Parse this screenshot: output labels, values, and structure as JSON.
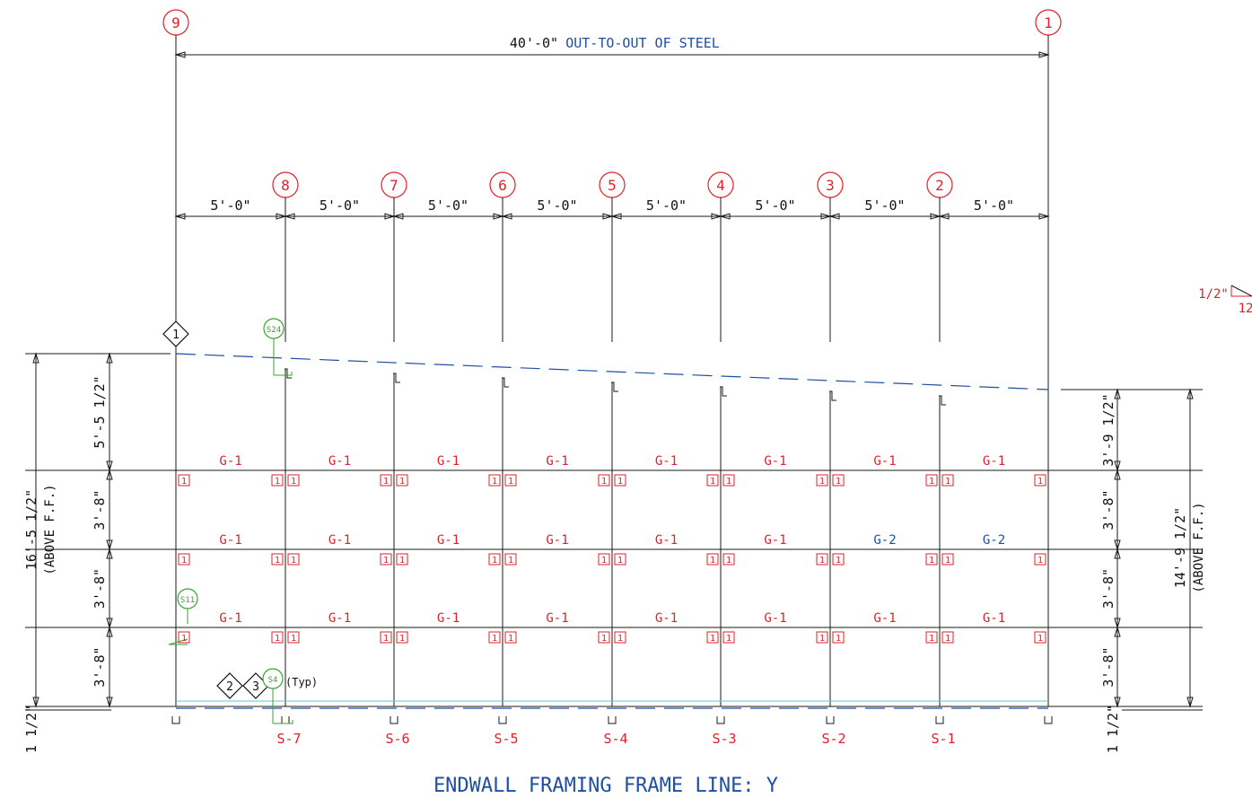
{
  "title": "ENDWALL FRAMING FRAME LINE: Y",
  "overall_dimension": {
    "value": "40'-0\"",
    "note": "OUT-TO-OUT OF STEEL"
  },
  "grid_lines": [
    "9",
    "8",
    "7",
    "6",
    "5",
    "4",
    "3",
    "2",
    "1"
  ],
  "bay_dimensions": [
    "5'-0\"",
    "5'-0\"",
    "5'-0\"",
    "5'-0\"",
    "5'-0\"",
    "5'-0\"",
    "5'-0\"",
    "5'-0\""
  ],
  "slope": {
    "rise": "1/2\"",
    "run": "12"
  },
  "left_dimensions": {
    "overall": "16'-5 1/2\"",
    "overall_note": "(ABOVE F.F.)",
    "segments": [
      "5'-5 1/2\"",
      "3'-8\"",
      "3'-8\"",
      "3'-8\""
    ],
    "base": "1 1/2\""
  },
  "right_dimensions": {
    "overall": "14'-9 1/2\"",
    "overall_note": "(ABOVE F.F.)",
    "segments": [
      "3'-9 1/2\"",
      "3'-8\"",
      "3'-8\"",
      "3'-8\""
    ],
    "base": "1 1/2\""
  },
  "girt_rows": [
    [
      "G-1",
      "G-1",
      "G-1",
      "G-1",
      "G-1",
      "G-1",
      "G-1",
      "G-1"
    ],
    [
      "G-1",
      "G-1",
      "G-1",
      "G-1",
      "G-1",
      "G-1",
      "G-2",
      "G-2"
    ],
    [
      "G-1",
      "G-1",
      "G-1",
      "G-1",
      "G-1",
      "G-1",
      "G-1",
      "G-1"
    ]
  ],
  "girt_colors": {
    "G-1": "#e0202a",
    "G-2": "#1f4fa0"
  },
  "clip_mark": "1",
  "column_marks": [
    "S-7",
    "S-6",
    "S-5",
    "S-4",
    "S-3",
    "S-2",
    "S-1"
  ],
  "section_callouts": {
    "top": "S24",
    "left": "S11",
    "base": "S4",
    "base_note": "(Typ)"
  },
  "detail_diamonds": [
    "1",
    "2",
    "3"
  ]
}
